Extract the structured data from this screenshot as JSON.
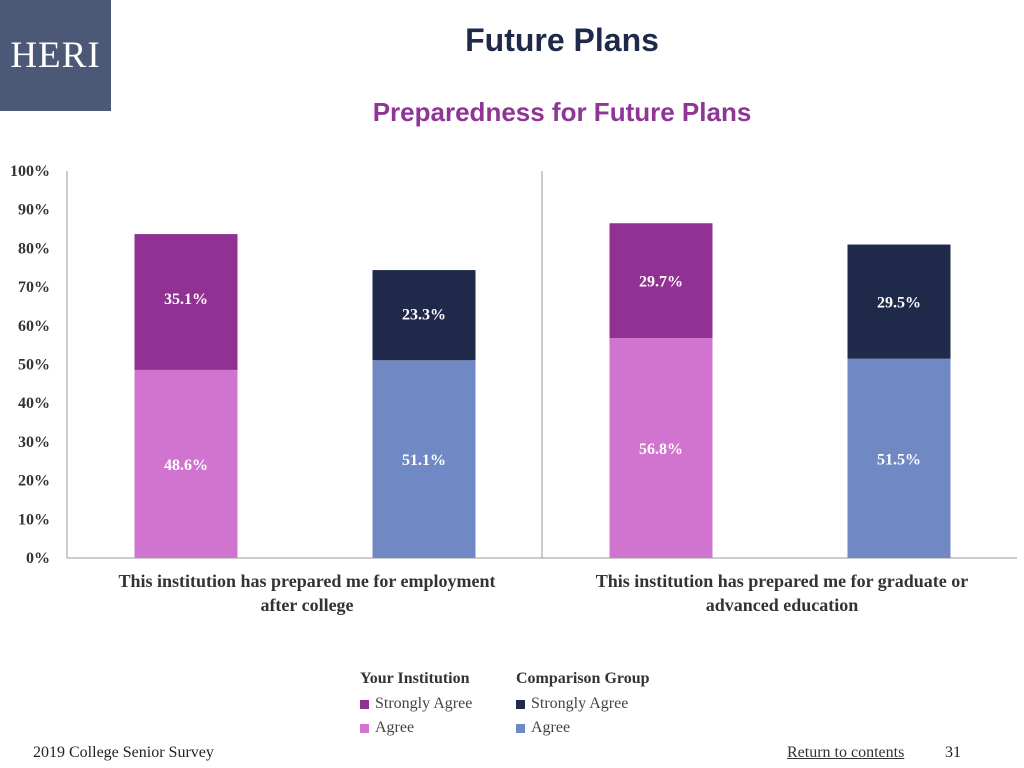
{
  "logo_text": "HERI",
  "title": "Future Plans",
  "subtitle": "Preparedness for Future Plans",
  "chart_data": {
    "type": "bar",
    "stacked": true,
    "ylim": [
      0,
      100
    ],
    "y_ticks": [
      "0%",
      "10%",
      "20%",
      "30%",
      "40%",
      "50%",
      "60%",
      "70%",
      "80%",
      "90%",
      "100%"
    ],
    "categories": [
      "This institution has prepared me for employment after college",
      "This institution has prepared me for graduate or advanced education"
    ],
    "groups": [
      {
        "name": "Your Institution",
        "series": [
          {
            "name": "Agree",
            "color": "#d174cf",
            "values": [
              48.6,
              56.8
            ],
            "labels": [
              "48.6%",
              "56.8%"
            ]
          },
          {
            "name": "Strongly Agree",
            "color": "#913193",
            "values": [
              35.1,
              29.7
            ],
            "labels": [
              "35.1%",
              "29.7%"
            ]
          }
        ]
      },
      {
        "name": "Comparison Group",
        "series": [
          {
            "name": "Agree",
            "color": "#7088c4",
            "values": [
              51.1,
              51.5
            ],
            "labels": [
              "51.1%",
              "51.5%"
            ]
          },
          {
            "name": "Strongly Agree",
            "color": "#1f2a4a",
            "values": [
              23.3,
              29.5
            ],
            "labels": [
              "23.3%",
              "29.5%"
            ]
          }
        ]
      }
    ],
    "legend_placement": "bottom",
    "grid": false
  },
  "category_labels": [
    "This institution has prepared me for employment after college",
    "This institution has prepared me for graduate or advanced education"
  ],
  "legend": {
    "groups": [
      {
        "header": "Your Institution",
        "items": [
          {
            "label": "Strongly Agree",
            "color": "#913193"
          },
          {
            "label": "Agree",
            "color": "#d174cf"
          }
        ]
      },
      {
        "header": "Comparison Group",
        "items": [
          {
            "label": "Strongly Agree",
            "color": "#1f2a4a"
          },
          {
            "label": "Agree",
            "color": "#7088c4"
          }
        ]
      }
    ]
  },
  "footer": {
    "survey": "2019 College Senior Survey",
    "link": "Return to contents",
    "page": "31"
  }
}
